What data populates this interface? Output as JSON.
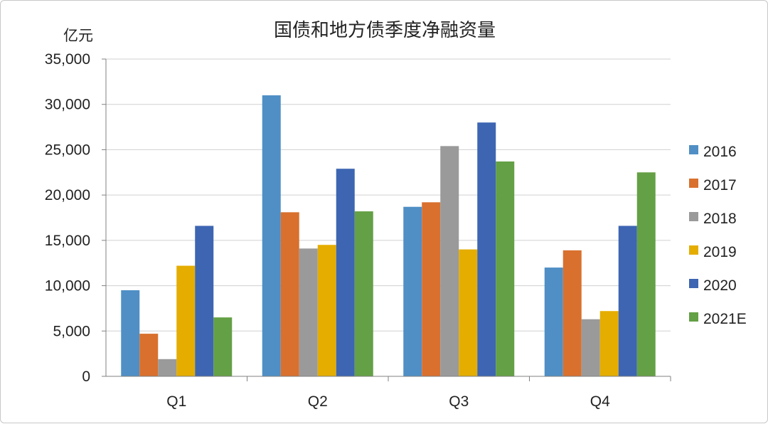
{
  "chart_data": {
    "type": "bar",
    "title": "国债和地方债季度净融资量",
    "unit_label": "亿元",
    "categories": [
      "Q1",
      "Q2",
      "Q3",
      "Q4"
    ],
    "ylim": [
      0,
      35000
    ],
    "yticks": [
      0,
      5000,
      10000,
      15000,
      20000,
      25000,
      30000,
      35000
    ],
    "ytick_labels": [
      "0",
      "5,000",
      "10,000",
      "15,000",
      "20,000",
      "25,000",
      "30,000",
      "35,000"
    ],
    "grid": true,
    "legend_position": "right",
    "series": [
      {
        "name": "2016",
        "color": "#4f8fc5",
        "values": [
          9500,
          31000,
          18700,
          12000
        ]
      },
      {
        "name": "2017",
        "color": "#d9702e",
        "values": [
          4700,
          18100,
          19200,
          13900
        ]
      },
      {
        "name": "2018",
        "color": "#9a9a9a",
        "values": [
          1900,
          14100,
          25400,
          6300
        ]
      },
      {
        "name": "2019",
        "color": "#e4ad00",
        "values": [
          12200,
          14500,
          14000,
          7200
        ]
      },
      {
        "name": "2020",
        "color": "#3d65b2",
        "values": [
          16600,
          22900,
          28000,
          16600
        ]
      },
      {
        "name": "2021E",
        "color": "#64a045",
        "values": [
          6500,
          18200,
          23700,
          22500
        ]
      }
    ]
  }
}
